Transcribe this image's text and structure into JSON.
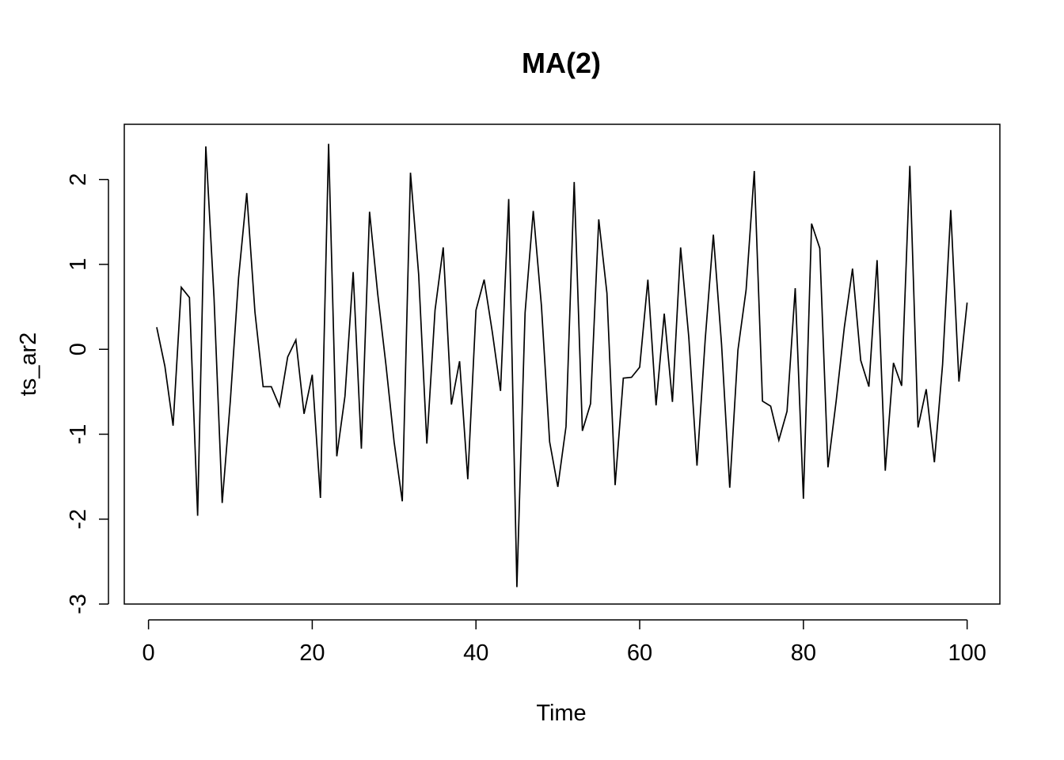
{
  "chart_data": {
    "type": "line",
    "title": "MA(2)",
    "xlabel": "Time",
    "ylabel": "ts_ar2",
    "xlim": [
      -2.96,
      104.0
    ],
    "ylim": [
      -3.0,
      2.65
    ],
    "xticks": [
      "0",
      "20",
      "40",
      "60",
      "80",
      "100"
    ],
    "yticks": [
      "-3",
      "-2",
      "-1",
      "0",
      "1",
      "2"
    ],
    "grid": false,
    "line_color": "#000000",
    "series": [
      {
        "x": [
          1,
          2,
          3,
          4,
          5,
          6,
          7,
          8,
          9,
          10,
          11,
          12,
          13,
          14,
          15,
          16,
          17,
          18,
          19,
          20,
          21,
          22,
          23,
          24,
          25,
          26,
          27,
          28,
          29,
          30,
          31,
          32,
          33,
          34,
          35,
          36,
          37,
          38,
          39,
          40,
          41,
          42,
          43,
          44,
          45,
          46,
          47,
          48,
          49,
          50,
          51,
          52,
          53,
          54,
          55,
          56,
          57,
          58,
          59,
          60,
          61,
          62,
          63,
          64,
          65,
          66,
          67,
          68,
          69,
          70,
          71,
          72,
          73,
          74,
          75,
          76,
          77,
          78,
          79,
          80,
          81,
          82,
          83,
          84,
          85,
          86,
          87,
          88,
          89,
          90,
          91,
          92,
          93,
          94,
          95,
          96,
          97,
          98,
          99,
          100
        ],
        "values": [
          0.26,
          -0.2,
          -0.9,
          0.73,
          0.61,
          -1.96,
          2.39,
          0.61,
          -1.81,
          -0.6,
          0.84,
          1.84,
          0.44,
          -0.44,
          -0.44,
          -0.67,
          -0.09,
          0.11,
          -0.76,
          -0.3,
          -1.75,
          2.42,
          -1.26,
          -0.55,
          0.91,
          -1.17,
          1.62,
          0.65,
          -0.18,
          -1.09,
          -1.79,
          2.08,
          0.88,
          -1.11,
          0.46,
          1.2,
          -0.65,
          -0.14,
          -1.53,
          0.46,
          0.82,
          0.2,
          -0.49,
          1.77,
          -2.8,
          0.43,
          1.63,
          0.51,
          -1.09,
          -1.62,
          -0.91,
          1.97,
          -0.96,
          -0.64,
          1.53,
          0.66,
          -1.6,
          -0.34,
          -0.33,
          -0.21,
          0.82,
          -0.66,
          0.42,
          -0.62,
          1.2,
          0.14,
          -1.37,
          0.11,
          1.35,
          0.06,
          -1.63,
          -0.01,
          0.7,
          2.1,
          -0.61,
          -0.67,
          -1.07,
          -0.73,
          0.72,
          -1.76,
          1.48,
          1.19,
          -1.39,
          -0.61,
          0.26,
          0.95,
          -0.13,
          -0.44,
          1.05,
          -1.43,
          -0.16,
          -0.43,
          2.16,
          -0.92,
          -0.47,
          -1.33,
          -0.18,
          1.64,
          -0.38,
          0.55
        ]
      }
    ]
  }
}
